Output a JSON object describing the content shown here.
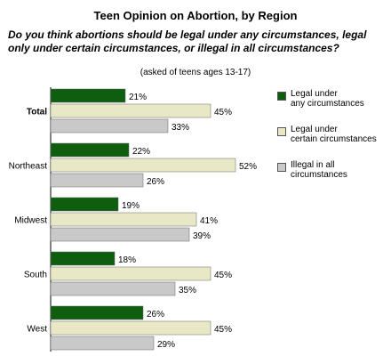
{
  "chart_data": {
    "type": "bar",
    "orientation": "horizontal",
    "title": "Teen Opinion on Abortion, by Region",
    "question": "Do you think abortions should be legal under any circumstances, legal only under certain circumstances, or illegal in all circumstances?",
    "note": "(asked of teens ages 13-17)",
    "categories": [
      "Total",
      "Northeast",
      "Midwest",
      "South",
      "West"
    ],
    "category_bold": [
      true,
      false,
      false,
      false,
      false
    ],
    "series": [
      {
        "name": "Legal under\nany circumstances",
        "color": "#0f5e0f",
        "values": [
          21,
          22,
          19,
          18,
          26
        ]
      },
      {
        "name": "Legal under\ncertain circumstances",
        "color": "#e8e8c6",
        "values": [
          45,
          52,
          41,
          45,
          45
        ]
      },
      {
        "name": "Illegal in all\ncircumstances",
        "color": "#c9c9c9",
        "values": [
          33,
          26,
          39,
          35,
          29
        ]
      }
    ],
    "value_suffix": "%",
    "xlim": [
      0,
      52
    ],
    "legend_position": "right",
    "grid": false
  }
}
